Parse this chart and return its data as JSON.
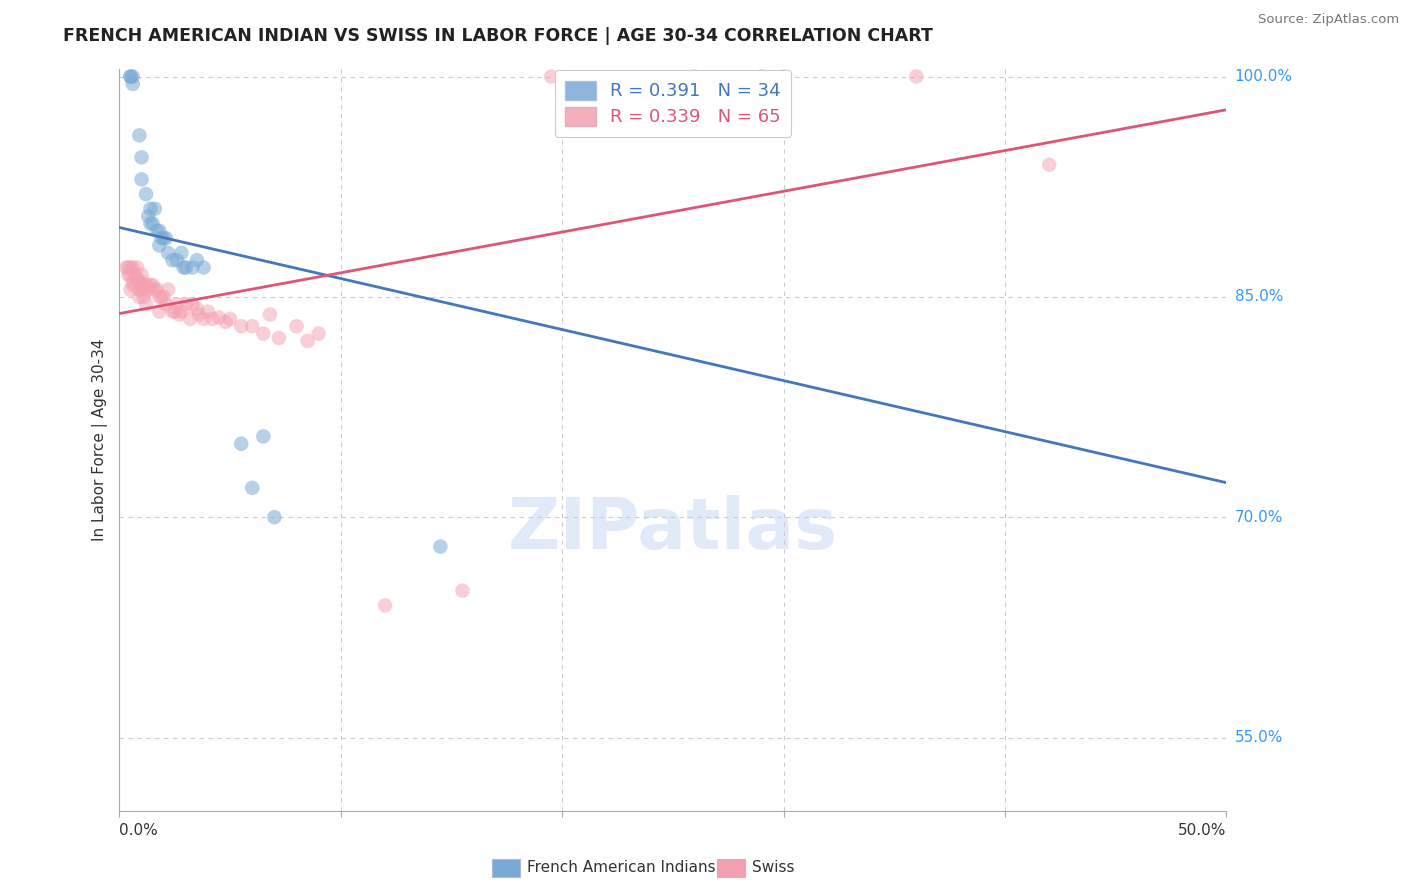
{
  "title": "FRENCH AMERICAN INDIAN VS SWISS IN LABOR FORCE | AGE 30-34 CORRELATION CHART",
  "source": "Source: ZipAtlas.com",
  "ylabel": "In Labor Force | Age 30-34",
  "xmin": 0.0,
  "xmax": 0.5,
  "ymin": 0.5,
  "ymax": 1.005,
  "grid_color": "#cccccc",
  "background_color": "#ffffff",
  "blue_color": "#7aaad4",
  "pink_color": "#f4a0b0",
  "blue_line_color": "#4477bb",
  "pink_line_color": "#dd5577",
  "R_blue": 0.391,
  "N_blue": 34,
  "R_pink": 0.339,
  "N_pink": 65,
  "legend_label_blue": "French American Indians",
  "legend_label_pink": "Swiss",
  "blue_x": [
    0.005,
    0.005,
    0.006,
    0.006,
    0.009,
    0.01,
    0.01,
    0.012,
    0.013,
    0.014,
    0.014,
    0.015,
    0.016,
    0.017,
    0.018,
    0.018,
    0.019,
    0.02,
    0.021,
    0.022,
    0.024,
    0.026,
    0.028,
    0.029,
    0.03,
    0.033,
    0.035,
    0.038,
    0.055,
    0.06,
    0.065,
    0.07,
    0.145,
    0.29
  ],
  "blue_y": [
    1.0,
    1.0,
    0.995,
    1.0,
    0.96,
    0.945,
    0.93,
    0.92,
    0.905,
    0.91,
    0.9,
    0.9,
    0.91,
    0.895,
    0.895,
    0.885,
    0.89,
    0.89,
    0.89,
    0.88,
    0.875,
    0.875,
    0.88,
    0.87,
    0.87,
    0.87,
    0.875,
    0.87,
    0.75,
    0.72,
    0.755,
    0.7,
    0.68,
    1.0
  ],
  "pink_x": [
    0.003,
    0.004,
    0.004,
    0.005,
    0.005,
    0.005,
    0.006,
    0.006,
    0.006,
    0.007,
    0.008,
    0.008,
    0.009,
    0.009,
    0.009,
    0.01,
    0.01,
    0.01,
    0.011,
    0.011,
    0.012,
    0.012,
    0.012,
    0.013,
    0.014,
    0.015,
    0.016,
    0.017,
    0.018,
    0.018,
    0.019,
    0.02,
    0.021,
    0.022,
    0.024,
    0.025,
    0.026,
    0.027,
    0.028,
    0.03,
    0.032,
    0.033,
    0.035,
    0.036,
    0.038,
    0.04,
    0.042,
    0.045,
    0.048,
    0.05,
    0.055,
    0.06,
    0.065,
    0.068,
    0.072,
    0.08,
    0.085,
    0.09,
    0.12,
    0.155,
    0.195,
    0.26,
    0.3,
    0.36,
    0.42
  ],
  "pink_y": [
    0.87,
    0.87,
    0.865,
    0.87,
    0.865,
    0.855,
    0.87,
    0.86,
    0.858,
    0.865,
    0.87,
    0.862,
    0.86,
    0.855,
    0.85,
    0.865,
    0.858,
    0.855,
    0.86,
    0.85,
    0.858,
    0.855,
    0.845,
    0.855,
    0.858,
    0.858,
    0.855,
    0.855,
    0.85,
    0.84,
    0.85,
    0.85,
    0.845,
    0.855,
    0.84,
    0.84,
    0.845,
    0.838,
    0.84,
    0.845,
    0.835,
    0.845,
    0.842,
    0.838,
    0.835,
    0.84,
    0.835,
    0.836,
    0.833,
    0.835,
    0.83,
    0.83,
    0.825,
    0.838,
    0.822,
    0.83,
    0.82,
    0.825,
    0.64,
    0.65,
    1.0,
    1.0,
    1.0,
    1.0,
    0.94
  ],
  "watermark_text": "ZIPatlas",
  "watermark_color": "#ccddf5",
  "watermark_alpha": 0.6
}
